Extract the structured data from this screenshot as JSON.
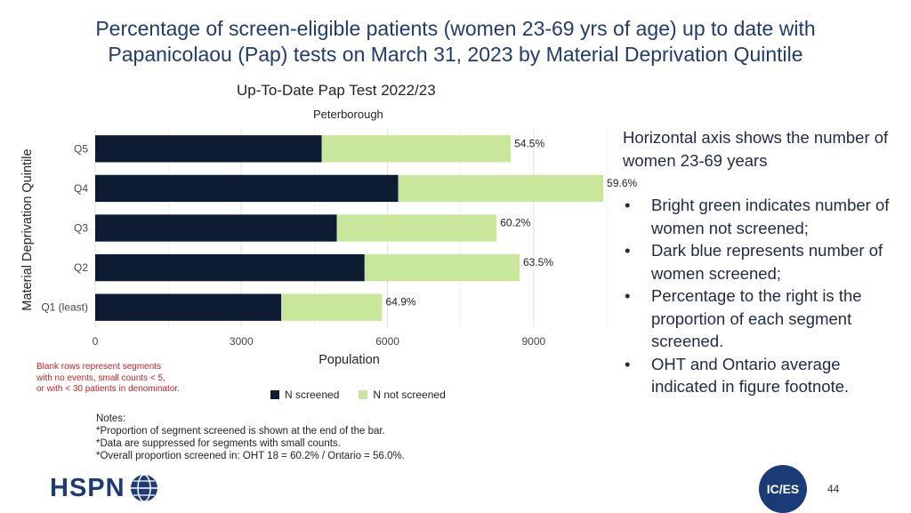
{
  "slide": {
    "title": "Percentage of screen-eligible patients (women 23-69 yrs of age) up to date with Papanicolaou (Pap) tests on March 31, 2023 by Material Deprivation Quintile",
    "page_number": "44"
  },
  "side_text": {
    "intro": "Horizontal axis shows the number of  women 23-69 years",
    "bullets": [
      "Bright green indicates number of women not screened;",
      "Dark blue represents number of women screened;",
      "Percentage to the right is the proportion of each segment screened.",
      "OHT and Ontario average indicated in figure footnote."
    ]
  },
  "red_note": "Blank rows represent segments\nwith no events, small counts < 5,\nor with < 30 patients in denominator.",
  "notes": {
    "heading": "Notes:",
    "lines": [
      "*Proportion of segment screened is shown at the end of the bar.",
      "*Data are suppressed for segments with small counts.",
      "*Overall proportion screened in: OHT 18 = 60.2% / Ontario = 56.0%."
    ]
  },
  "logos": {
    "left": "HSPN",
    "right": "IC/ES"
  },
  "colors": {
    "screened": "#0d1b33",
    "not_screened": "#c8e79a",
    "title": "#1f3b73",
    "red_note": "#cc1f1f"
  },
  "chart_data": {
    "type": "bar",
    "orientation": "horizontal",
    "stacked": true,
    "title": "Up-To-Date Pap Test 2022/23",
    "subtitle": "Peterborough",
    "xlabel": "Population",
    "ylabel": "Material Deprivation Quintile",
    "xlim": [
      0,
      10500
    ],
    "xticks": [
      0,
      3000,
      6000,
      9000
    ],
    "grid": true,
    "legend_position": "bottom",
    "categories": [
      "Q5",
      "Q4",
      "Q3",
      "Q2",
      "Q1 (least)"
    ],
    "series": [
      {
        "name": "N screened",
        "color": "#0d1b33",
        "values": [
          4650,
          6220,
          4960,
          5530,
          3820
        ]
      },
      {
        "name": "N not screened",
        "color": "#c8e79a",
        "values": [
          3880,
          4210,
          3280,
          3180,
          2070
        ]
      }
    ],
    "labels": [
      "54.5%",
      "59.6%",
      "60.2%",
      "63.5%",
      "64.9%"
    ]
  }
}
